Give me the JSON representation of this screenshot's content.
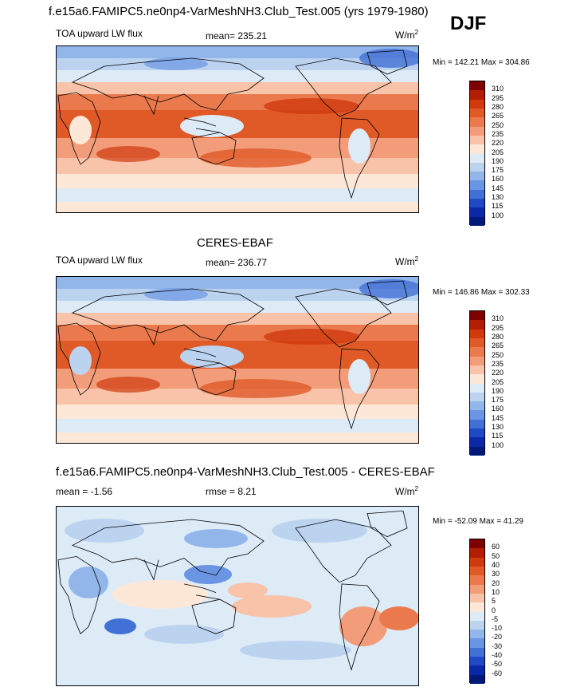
{
  "main_title": "f.e15a6.FAMIPC5.ne0np4-VarMeshNH3.Club_Test.005 (yrs 1979-1980)",
  "season": "DJF",
  "panels": [
    {
      "heading": "",
      "left_label": "TOA upward LW flux",
      "center_label": "mean= 235.21",
      "units": "W/m",
      "units_exp": "2",
      "minmax": "Min = 142.21 Max = 304.86",
      "kind": "model"
    },
    {
      "heading": "CERES-EBAF",
      "left_label": "TOA upward LW flux",
      "center_label": "mean= 236.77",
      "units": "W/m",
      "units_exp": "2",
      "minmax": "Min = 146.86 Max = 302.33",
      "kind": "obs"
    },
    {
      "heading": "f.e15a6.FAMIPC5.ne0np4-VarMeshNH3.Club_Test.005 - CERES-EBAF",
      "left_label": "mean =  -1.56",
      "center_label": "rmse =   8.21",
      "units": "W/m",
      "units_exp": "2",
      "minmax": "Min = -52.09 Max =  41.29",
      "kind": "diff"
    }
  ],
  "colorbar_flux": {
    "labels": [
      "310",
      "295",
      "280",
      "265",
      "250",
      "235",
      "220",
      "205",
      "190",
      "175",
      "160",
      "145",
      "130",
      "115",
      "100"
    ],
    "colors": [
      "#7f0000",
      "#b21e04",
      "#d03a0e",
      "#e05a28",
      "#ea7a4e",
      "#f29c7a",
      "#f8c3a8",
      "#fde8d8",
      "#ddebf7",
      "#bcd3f0",
      "#93b6ea",
      "#6a95e2",
      "#4271d6",
      "#2049c4",
      "#0a28a8",
      "#001a7a"
    ]
  },
  "colorbar_diff": {
    "labels": [
      "60",
      "50",
      "40",
      "30",
      "20",
      "10",
      "5",
      "0",
      "-5",
      "-10",
      "-20",
      "-30",
      "-40",
      "-50",
      "-60"
    ],
    "colors": [
      "#7f0000",
      "#b21e04",
      "#d03a0e",
      "#e05a28",
      "#ea7a4e",
      "#f29c7a",
      "#f8c3a8",
      "#fde8d8",
      "#ddebf7",
      "#bcd3f0",
      "#93b6ea",
      "#6a95e2",
      "#4271d6",
      "#2049c4",
      "#0a28a8",
      "#001a7a"
    ]
  }
}
